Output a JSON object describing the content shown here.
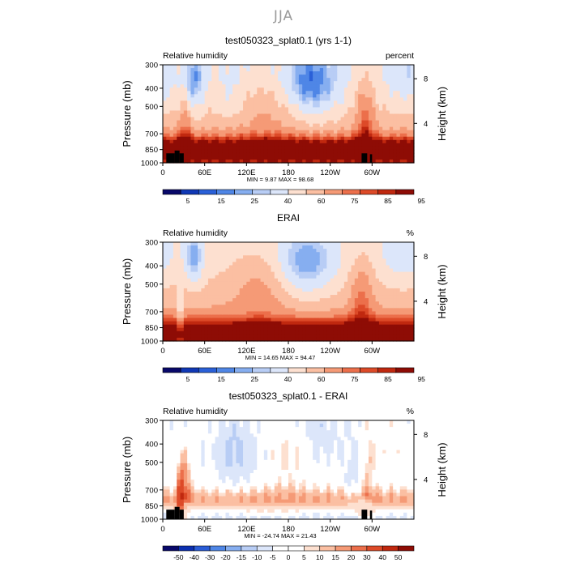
{
  "suptitle": "JJA",
  "colors": {
    "ramp_full": [
      "#08086a",
      "#0b2fb0",
      "#2a5cd6",
      "#4f86e6",
      "#86aef0",
      "#b8cdf5",
      "#dce6fa",
      "#ffffff",
      "#fde0d0",
      "#fbbfa2",
      "#f59a76",
      "#ec6f4b",
      "#dd4a28",
      "#c0280f",
      "#8e0c05"
    ],
    "ramp_rh": [
      "#08086a",
      "#1038b5",
      "#2a60d8",
      "#4f86e6",
      "#86aef0",
      "#b8cdf5",
      "#dce6fa",
      "#fde0d0",
      "#fbbfa2",
      "#f59a76",
      "#ec6f4b",
      "#dd4a28",
      "#c0280f",
      "#8e0c05"
    ]
  },
  "chart_data": [
    {
      "type": "heatmap",
      "title": "test050323_splat0.1 (yrs 1-1)",
      "left_label": "Relative humidity",
      "right_label": "percent",
      "ylabel": "Pressure (mb)",
      "ylabel_right": "Height (km)",
      "yticks": [
        "300",
        "400",
        "500",
        "700",
        "850",
        "1000"
      ],
      "yticks_right": [
        "8",
        "4"
      ],
      "xticks": [
        "0",
        "60E",
        "120E",
        "180",
        "120W",
        "60W"
      ],
      "stats": "MIN =    9.87   MAX =   98.68",
      "min": 9.87,
      "max": 98.68,
      "colorbar_labels": [
        "5",
        "15",
        "25",
        "40",
        "60",
        "75",
        "85",
        "95"
      ]
    },
    {
      "type": "heatmap",
      "title": "ERAI",
      "left_label": "Relative humidity",
      "right_label": "%",
      "ylabel": "Pressure (mb)",
      "ylabel_right": "Height (km)",
      "yticks": [
        "300",
        "400",
        "500",
        "700",
        "850",
        "1000"
      ],
      "yticks_right": [
        "8",
        "4"
      ],
      "xticks": [
        "0",
        "60E",
        "120E",
        "180",
        "120W",
        "60W"
      ],
      "stats": "MIN =   14.65   MAX =   94.47",
      "min": 14.65,
      "max": 94.47,
      "colorbar_labels": [
        "5",
        "15",
        "25",
        "40",
        "60",
        "75",
        "85",
        "95"
      ]
    },
    {
      "type": "heatmap",
      "title": "test050323_splat0.1 - ERAI",
      "left_label": "Relative humidity",
      "right_label": "%",
      "ylabel": "Pressure (mb)",
      "ylabel_right": "Height (km)",
      "yticks": [
        "300",
        "400",
        "500",
        "700",
        "850",
        "1000"
      ],
      "yticks_right": [
        "8",
        "4"
      ],
      "xticks": [
        "0",
        "60E",
        "120E",
        "180",
        "120W",
        "60W"
      ],
      "stats": "MIN =  -24.74   MAX =   21.43",
      "min": -24.74,
      "max": 21.43,
      "colorbar_labels": [
        "-50",
        "-40",
        "-30",
        "-20",
        "-15",
        "-10",
        "-5",
        "0",
        "5",
        "10",
        "15",
        "20",
        "30",
        "40",
        "50"
      ]
    }
  ]
}
